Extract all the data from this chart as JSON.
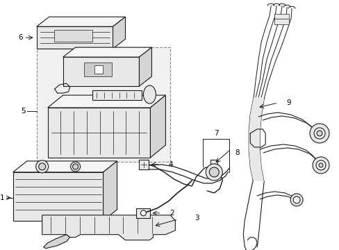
{
  "bg_color": "#ffffff",
  "line_color": "#1a1a1a",
  "lw_main": 0.8,
  "lw_thin": 0.5,
  "lw_thick": 1.2,
  "fill_light": "#f5f5f5",
  "fill_mid": "#e8e8e8",
  "fill_dark": "#d5d5d5",
  "box5_fill": "#ececec",
  "label_fs": 7.5
}
